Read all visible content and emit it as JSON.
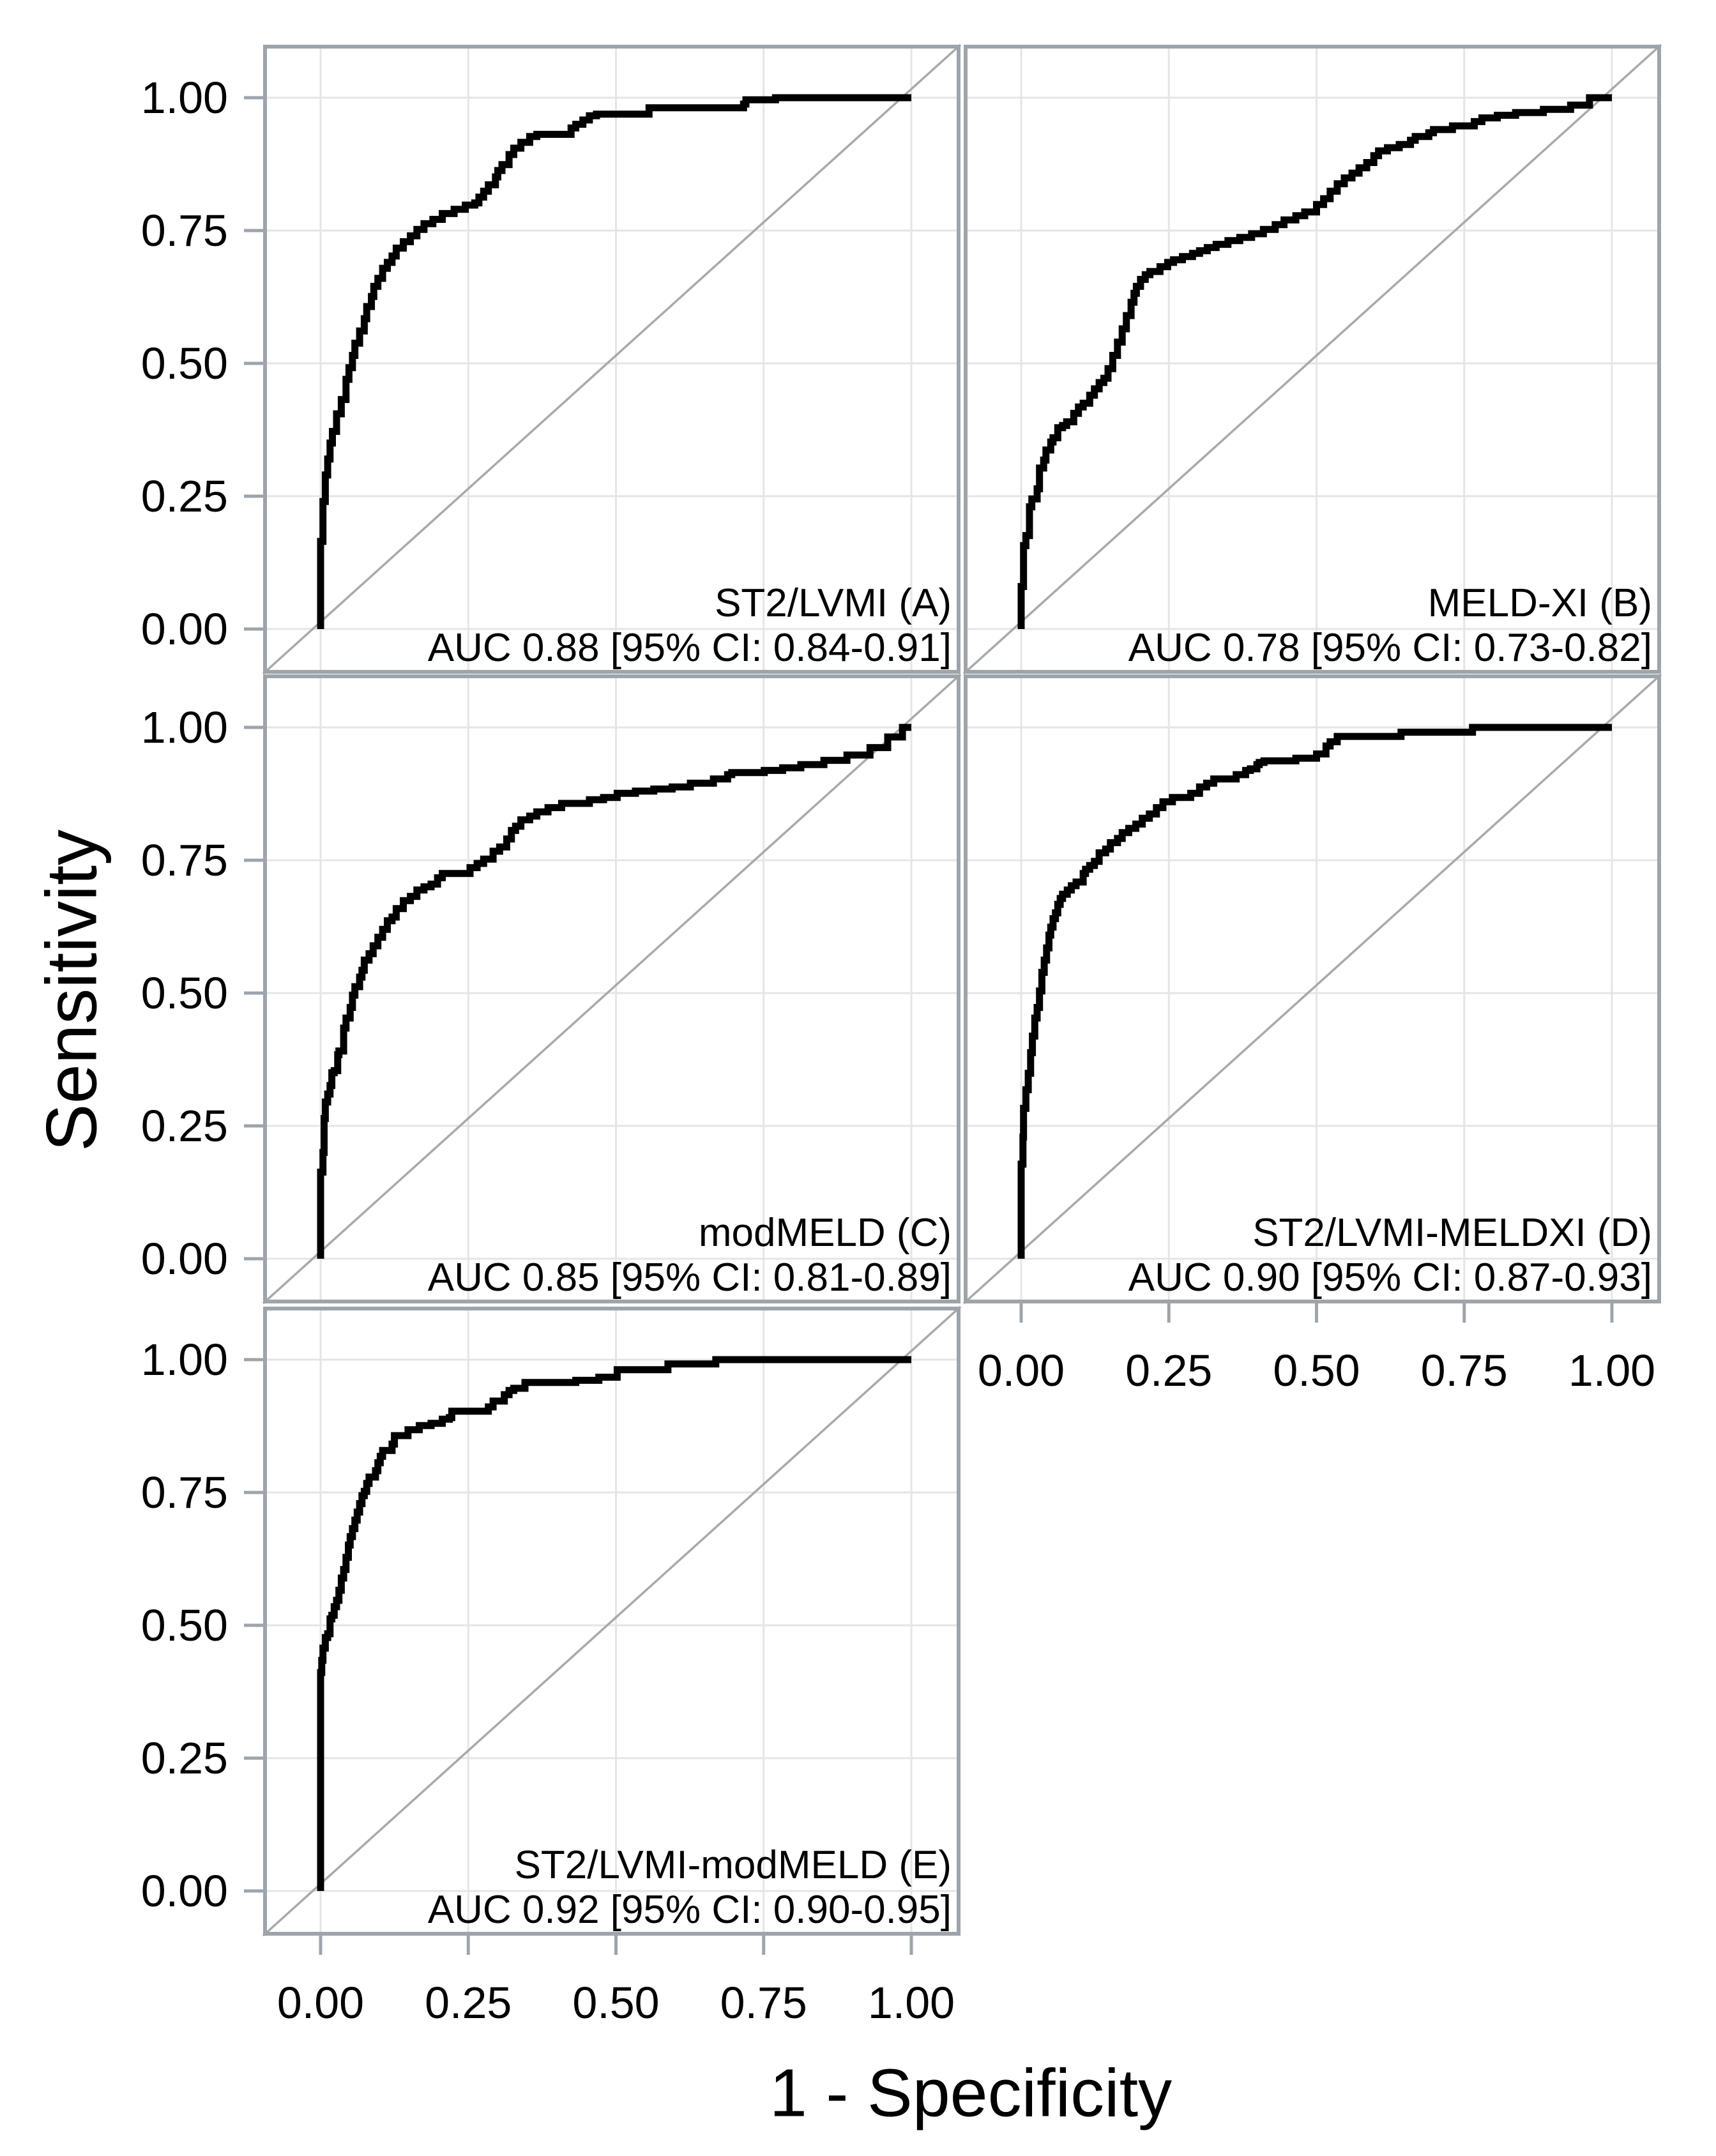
{
  "figure": {
    "ylabel": "Sensitivity",
    "xlabel": "1 - Specificity",
    "x_tick_labels": [
      "0.00",
      "0.25",
      "0.50",
      "0.75",
      "1.00"
    ],
    "y_tick_labels": [
      "1.00",
      "0.75",
      "0.50",
      "0.25",
      "0.00"
    ]
  },
  "colors": {
    "background": "#ffffff",
    "panel_border": "#9da4aa",
    "gridline": "#e5e5e5",
    "diagonal_reference": "#a9a9a9",
    "roc_curve": "#000000",
    "text": "#000000"
  },
  "chart_data": [
    {
      "type": "line",
      "subtype": "roc_step",
      "panel": "A",
      "model": "ST2/LVMI",
      "label_line1": "ST2/LVMI (A)",
      "label_line2": "AUC 0.88 [95% CI: 0.84-0.91]",
      "auc": 0.88,
      "ci_low": 0.84,
      "ci_high": 0.91,
      "row": 0,
      "col": 0,
      "show_x_axis": false,
      "show_y_axis": true,
      "xlim": [
        0,
        1
      ],
      "ylim": [
        0,
        1
      ],
      "grid": true,
      "reference_line": "diagonal",
      "points": [
        [
          0,
          0
        ],
        [
          0.004,
          0.165
        ],
        [
          0.008,
          0.24
        ],
        [
          0.012,
          0.29
        ],
        [
          0.016,
          0.32
        ],
        [
          0.02,
          0.35
        ],
        [
          0.027,
          0.372
        ],
        [
          0.035,
          0.405
        ],
        [
          0.043,
          0.432
        ],
        [
          0.048,
          0.47
        ],
        [
          0.054,
          0.492
        ],
        [
          0.058,
          0.515
        ],
        [
          0.066,
          0.538
        ],
        [
          0.074,
          0.561
        ],
        [
          0.078,
          0.584
        ],
        [
          0.086,
          0.607
        ],
        [
          0.09,
          0.626
        ],
        [
          0.097,
          0.645
        ],
        [
          0.105,
          0.66
        ],
        [
          0.113,
          0.679
        ],
        [
          0.121,
          0.69
        ],
        [
          0.128,
          0.702
        ],
        [
          0.14,
          0.717
        ],
        [
          0.152,
          0.729
        ],
        [
          0.163,
          0.74
        ],
        [
          0.175,
          0.752
        ],
        [
          0.19,
          0.763
        ],
        [
          0.206,
          0.771
        ],
        [
          0.226,
          0.782
        ],
        [
          0.245,
          0.79
        ],
        [
          0.261,
          0.798
        ],
        [
          0.268,
          0.802
        ],
        [
          0.276,
          0.813
        ],
        [
          0.284,
          0.824
        ],
        [
          0.296,
          0.836
        ],
        [
          0.3,
          0.851
        ],
        [
          0.307,
          0.863
        ],
        [
          0.319,
          0.874
        ],
        [
          0.327,
          0.893
        ],
        [
          0.339,
          0.905
        ],
        [
          0.354,
          0.916
        ],
        [
          0.366,
          0.927
        ],
        [
          0.377,
          0.931
        ],
        [
          0.424,
          0.931
        ],
        [
          0.432,
          0.943
        ],
        [
          0.444,
          0.95
        ],
        [
          0.455,
          0.958
        ],
        [
          0.467,
          0.966
        ],
        [
          0.502,
          0.969
        ],
        [
          0.556,
          0.969
        ],
        [
          0.56,
          0.981
        ],
        [
          0.716,
          0.981
        ],
        [
          0.72,
          0.988
        ],
        [
          0.77,
          0.996
        ],
        [
          0.83,
          1
        ],
        [
          1,
          1
        ]
      ]
    },
    {
      "type": "line",
      "subtype": "roc_step",
      "panel": "B",
      "model": "MELD-XI",
      "label_line1": "MELD-XI (B)",
      "label_line2": "AUC 0.78 [95% CI: 0.73-0.82]",
      "auc": 0.78,
      "ci_low": 0.73,
      "ci_high": 0.82,
      "row": 0,
      "col": 1,
      "show_x_axis": false,
      "show_y_axis": false,
      "xlim": [
        0,
        1
      ],
      "ylim": [
        0,
        1
      ],
      "grid": true,
      "reference_line": "diagonal",
      "points": [
        [
          0,
          0
        ],
        [
          0.004,
          0.08
        ],
        [
          0.008,
          0.157
        ],
        [
          0.014,
          0.176
        ],
        [
          0.018,
          0.23
        ],
        [
          0.027,
          0.245
        ],
        [
          0.031,
          0.264
        ],
        [
          0.038,
          0.303
        ],
        [
          0.042,
          0.318
        ],
        [
          0.05,
          0.337
        ],
        [
          0.054,
          0.352
        ],
        [
          0.062,
          0.36
        ],
        [
          0.07,
          0.379
        ],
        [
          0.077,
          0.383
        ],
        [
          0.089,
          0.39
        ],
        [
          0.097,
          0.406
        ],
        [
          0.105,
          0.418
        ],
        [
          0.116,
          0.425
        ],
        [
          0.124,
          0.44
        ],
        [
          0.132,
          0.452
        ],
        [
          0.14,
          0.464
        ],
        [
          0.147,
          0.472
        ],
        [
          0.155,
          0.49
        ],
        [
          0.163,
          0.515
        ],
        [
          0.171,
          0.54
        ],
        [
          0.178,
          0.565
        ],
        [
          0.186,
          0.59
        ],
        [
          0.191,
          0.615
        ],
        [
          0.195,
          0.632
        ],
        [
          0.202,
          0.645
        ],
        [
          0.21,
          0.658
        ],
        [
          0.218,
          0.667
        ],
        [
          0.235,
          0.673
        ],
        [
          0.248,
          0.682
        ],
        [
          0.258,
          0.69
        ],
        [
          0.273,
          0.695
        ],
        [
          0.29,
          0.701
        ],
        [
          0.302,
          0.707
        ],
        [
          0.315,
          0.712
        ],
        [
          0.33,
          0.718
        ],
        [
          0.35,
          0.724
        ],
        [
          0.37,
          0.731
        ],
        [
          0.39,
          0.737
        ],
        [
          0.41,
          0.744
        ],
        [
          0.43,
          0.752
        ],
        [
          0.445,
          0.761
        ],
        [
          0.465,
          0.77
        ],
        [
          0.48,
          0.778
        ],
        [
          0.5,
          0.785
        ],
        [
          0.512,
          0.799
        ],
        [
          0.523,
          0.81
        ],
        [
          0.535,
          0.824
        ],
        [
          0.547,
          0.838
        ],
        [
          0.56,
          0.849
        ],
        [
          0.572,
          0.858
        ],
        [
          0.585,
          0.868
        ],
        [
          0.597,
          0.878
        ],
        [
          0.605,
          0.891
        ],
        [
          0.62,
          0.9
        ],
        [
          0.64,
          0.906
        ],
        [
          0.659,
          0.912
        ],
        [
          0.667,
          0.92
        ],
        [
          0.69,
          0.927
        ],
        [
          0.698,
          0.934
        ],
        [
          0.73,
          0.94
        ],
        [
          0.767,
          0.947
        ],
        [
          0.78,
          0.955
        ],
        [
          0.806,
          0.962
        ],
        [
          0.837,
          0.967
        ],
        [
          0.884,
          0.972
        ],
        [
          0.93,
          0.978
        ],
        [
          0.962,
          0.986
        ],
        [
          1,
          1
        ]
      ]
    },
    {
      "type": "line",
      "subtype": "roc_step",
      "panel": "C",
      "model": "modMELD",
      "label_line1": "modMELD (C)",
      "label_line2": "AUC 0.85 [95% CI: 0.81-0.89]",
      "auc": 0.85,
      "ci_low": 0.81,
      "ci_high": 0.89,
      "row": 1,
      "col": 0,
      "show_x_axis": false,
      "show_y_axis": true,
      "xlim": [
        0,
        1
      ],
      "ylim": [
        0,
        1
      ],
      "grid": true,
      "reference_line": "diagonal",
      "points": [
        [
          0,
          0
        ],
        [
          0.004,
          0.163
        ],
        [
          0.006,
          0.2
        ],
        [
          0.008,
          0.264
        ],
        [
          0.012,
          0.295
        ],
        [
          0.016,
          0.31
        ],
        [
          0.019,
          0.326
        ],
        [
          0.023,
          0.35
        ],
        [
          0.029,
          0.354
        ],
        [
          0.031,
          0.384
        ],
        [
          0.039,
          0.391
        ],
        [
          0.043,
          0.434
        ],
        [
          0.05,
          0.453
        ],
        [
          0.054,
          0.473
        ],
        [
          0.058,
          0.496
        ],
        [
          0.066,
          0.512
        ],
        [
          0.07,
          0.53
        ],
        [
          0.074,
          0.543
        ],
        [
          0.082,
          0.562
        ],
        [
          0.089,
          0.574
        ],
        [
          0.097,
          0.589
        ],
        [
          0.105,
          0.605
        ],
        [
          0.113,
          0.62
        ],
        [
          0.121,
          0.636
        ],
        [
          0.128,
          0.643
        ],
        [
          0.14,
          0.659
        ],
        [
          0.152,
          0.674
        ],
        [
          0.163,
          0.682
        ],
        [
          0.175,
          0.694
        ],
        [
          0.187,
          0.7
        ],
        [
          0.198,
          0.705
        ],
        [
          0.206,
          0.717
        ],
        [
          0.253,
          0.725
        ],
        [
          0.265,
          0.736
        ],
        [
          0.276,
          0.744
        ],
        [
          0.292,
          0.752
        ],
        [
          0.303,
          0.767
        ],
        [
          0.315,
          0.775
        ],
        [
          0.323,
          0.79
        ],
        [
          0.33,
          0.806
        ],
        [
          0.339,
          0.814
        ],
        [
          0.354,
          0.826
        ],
        [
          0.366,
          0.833
        ],
        [
          0.385,
          0.841
        ],
        [
          0.408,
          0.849
        ],
        [
          0.455,
          0.857
        ],
        [
          0.479,
          0.864
        ],
        [
          0.502,
          0.868
        ],
        [
          0.533,
          0.876
        ],
        [
          0.564,
          0.88
        ],
        [
          0.595,
          0.884
        ],
        [
          0.626,
          0.888
        ],
        [
          0.665,
          0.895
        ],
        [
          0.689,
          0.903
        ],
        [
          0.696,
          0.911
        ],
        [
          0.751,
          0.915
        ],
        [
          0.782,
          0.919
        ],
        [
          0.813,
          0.924
        ],
        [
          0.852,
          0.93
        ],
        [
          0.891,
          0.938
        ],
        [
          0.93,
          0.948
        ],
        [
          0.96,
          0.962
        ],
        [
          0.985,
          0.982
        ],
        [
          1,
          1
        ]
      ]
    },
    {
      "type": "line",
      "subtype": "roc_step",
      "panel": "D",
      "model": "ST2/LVMI-MELDXI",
      "label_line1": "ST2/LVMI-MELDXI (D)",
      "label_line2": "AUC 0.90 [95% CI: 0.87-0.93]",
      "auc": 0.9,
      "ci_low": 0.87,
      "ci_high": 0.93,
      "row": 1,
      "col": 1,
      "show_x_axis": true,
      "show_y_axis": false,
      "xlim": [
        0,
        1
      ],
      "ylim": [
        0,
        1
      ],
      "grid": true,
      "reference_line": "diagonal",
      "points": [
        [
          0,
          0
        ],
        [
          0.003,
          0.178
        ],
        [
          0.004,
          0.229
        ],
        [
          0.008,
          0.283
        ],
        [
          0.012,
          0.318
        ],
        [
          0.016,
          0.349
        ],
        [
          0.019,
          0.388
        ],
        [
          0.023,
          0.419
        ],
        [
          0.027,
          0.453
        ],
        [
          0.031,
          0.473
        ],
        [
          0.035,
          0.504
        ],
        [
          0.039,
          0.539
        ],
        [
          0.043,
          0.562
        ],
        [
          0.047,
          0.585
        ],
        [
          0.05,
          0.609
        ],
        [
          0.054,
          0.624
        ],
        [
          0.058,
          0.64
        ],
        [
          0.062,
          0.651
        ],
        [
          0.066,
          0.667
        ],
        [
          0.07,
          0.678
        ],
        [
          0.078,
          0.686
        ],
        [
          0.085,
          0.694
        ],
        [
          0.093,
          0.702
        ],
        [
          0.105,
          0.709
        ],
        [
          0.109,
          0.725
        ],
        [
          0.116,
          0.733
        ],
        [
          0.124,
          0.74
        ],
        [
          0.132,
          0.748
        ],
        [
          0.143,
          0.764
        ],
        [
          0.151,
          0.771
        ],
        [
          0.163,
          0.783
        ],
        [
          0.171,
          0.791
        ],
        [
          0.182,
          0.802
        ],
        [
          0.194,
          0.81
        ],
        [
          0.205,
          0.818
        ],
        [
          0.217,
          0.829
        ],
        [
          0.229,
          0.837
        ],
        [
          0.24,
          0.849
        ],
        [
          0.256,
          0.86
        ],
        [
          0.287,
          0.868
        ],
        [
          0.302,
          0.876
        ],
        [
          0.314,
          0.888
        ],
        [
          0.326,
          0.895
        ],
        [
          0.364,
          0.903
        ],
        [
          0.38,
          0.911
        ],
        [
          0.388,
          0.919
        ],
        [
          0.399,
          0.922
        ],
        [
          0.403,
          0.93
        ],
        [
          0.411,
          0.934
        ],
        [
          0.465,
          0.937
        ],
        [
          0.5,
          0.942
        ],
        [
          0.516,
          0.95
        ],
        [
          0.523,
          0.965
        ],
        [
          0.535,
          0.973
        ],
        [
          0.643,
          0.983
        ],
        [
          0.764,
          0.991
        ],
        [
          0.95,
          1
        ],
        [
          1,
          1
        ]
      ]
    },
    {
      "type": "line",
      "subtype": "roc_step",
      "panel": "E",
      "model": "ST2/LVMI-modMELD",
      "label_line1": "ST2/LVMI-modMELD (E)",
      "label_line2": "AUC 0.92 [95% CI: 0.90-0.95]",
      "auc": 0.92,
      "ci_low": 0.9,
      "ci_high": 0.95,
      "row": 2,
      "col": 0,
      "show_x_axis": true,
      "show_y_axis": true,
      "xlim": [
        0,
        1
      ],
      "ylim": [
        0,
        1
      ],
      "grid": true,
      "reference_line": "diagonal",
      "points": [
        [
          0,
          0
        ],
        [
          0.002,
          0.411
        ],
        [
          0.004,
          0.434
        ],
        [
          0.008,
          0.457
        ],
        [
          0.012,
          0.477
        ],
        [
          0.016,
          0.484
        ],
        [
          0.019,
          0.512
        ],
        [
          0.023,
          0.519
        ],
        [
          0.027,
          0.535
        ],
        [
          0.031,
          0.547
        ],
        [
          0.035,
          0.566
        ],
        [
          0.039,
          0.589
        ],
        [
          0.043,
          0.605
        ],
        [
          0.047,
          0.628
        ],
        [
          0.05,
          0.651
        ],
        [
          0.054,
          0.667
        ],
        [
          0.058,
          0.682
        ],
        [
          0.062,
          0.698
        ],
        [
          0.066,
          0.713
        ],
        [
          0.07,
          0.729
        ],
        [
          0.074,
          0.744
        ],
        [
          0.078,
          0.752
        ],
        [
          0.082,
          0.767
        ],
        [
          0.093,
          0.779
        ],
        [
          0.097,
          0.791
        ],
        [
          0.101,
          0.806
        ],
        [
          0.105,
          0.818
        ],
        [
          0.121,
          0.829
        ],
        [
          0.125,
          0.841
        ],
        [
          0.148,
          0.857
        ],
        [
          0.167,
          0.868
        ],
        [
          0.187,
          0.876
        ],
        [
          0.206,
          0.88
        ],
        [
          0.218,
          0.888
        ],
        [
          0.222,
          0.891
        ],
        [
          0.284,
          0.903
        ],
        [
          0.292,
          0.911
        ],
        [
          0.311,
          0.922
        ],
        [
          0.319,
          0.934
        ],
        [
          0.327,
          0.942
        ],
        [
          0.346,
          0.946
        ],
        [
          0.432,
          0.957
        ],
        [
          0.471,
          0.961
        ],
        [
          0.502,
          0.967
        ],
        [
          0.588,
          0.981
        ],
        [
          0.669,
          0.992
        ],
        [
          0.965,
          1
        ],
        [
          1,
          1
        ]
      ]
    }
  ]
}
